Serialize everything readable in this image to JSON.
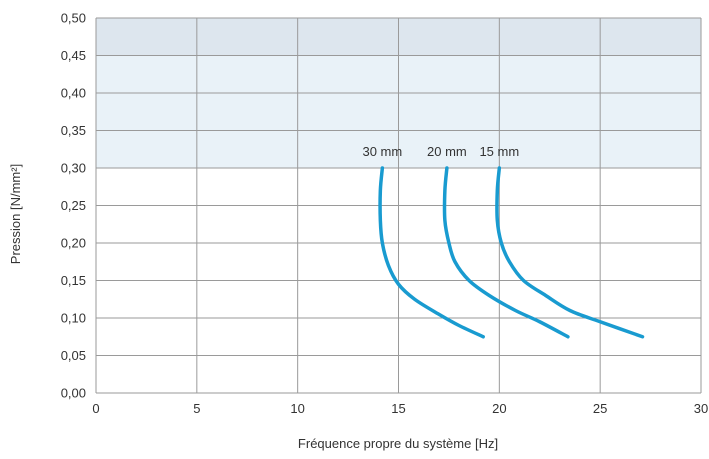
{
  "chart_data": {
    "type": "line",
    "xlabel": "Fréquence propre du système [Hz]",
    "ylabel": "Pression [N/mm²]",
    "xlim": [
      0,
      30
    ],
    "ylim": [
      0,
      0.5
    ],
    "x_ticks": [
      0,
      5,
      10,
      15,
      20,
      25,
      30
    ],
    "x_tick_labels": [
      "0",
      "5",
      "10",
      "15",
      "20",
      "25",
      "30"
    ],
    "y_ticks": [
      0,
      0.05,
      0.1,
      0.15,
      0.2,
      0.25,
      0.3,
      0.35,
      0.4,
      0.45,
      0.5
    ],
    "y_tick_labels": [
      "0,00",
      "0,05",
      "0,10",
      "0,15",
      "0,20",
      "0,25",
      "0,30",
      "0,35",
      "0,40",
      "0,45",
      "0,50"
    ],
    "grid": true,
    "bands": [
      {
        "from": 0.45,
        "to": 0.5,
        "color": "#dde6ee"
      },
      {
        "from": 0.3,
        "to": 0.45,
        "color": "#e9f2f8"
      }
    ],
    "line_color": "#199bd0",
    "series": [
      {
        "name": "30 mm",
        "points": [
          [
            14.2,
            0.3
          ],
          [
            14.1,
            0.27
          ],
          [
            14.1,
            0.23
          ],
          [
            14.2,
            0.2
          ],
          [
            14.5,
            0.17
          ],
          [
            15.0,
            0.145
          ],
          [
            15.8,
            0.125
          ],
          [
            17.0,
            0.105
          ],
          [
            18.0,
            0.09
          ],
          [
            19.2,
            0.075
          ]
        ]
      },
      {
        "name": "20 mm",
        "points": [
          [
            17.4,
            0.3
          ],
          [
            17.3,
            0.27
          ],
          [
            17.3,
            0.23
          ],
          [
            17.5,
            0.2
          ],
          [
            17.8,
            0.175
          ],
          [
            18.5,
            0.15
          ],
          [
            19.5,
            0.13
          ],
          [
            20.8,
            0.11
          ],
          [
            22.0,
            0.095
          ],
          [
            23.4,
            0.075
          ]
        ]
      },
      {
        "name": "15 mm",
        "points": [
          [
            20.0,
            0.3
          ],
          [
            19.9,
            0.27
          ],
          [
            19.9,
            0.23
          ],
          [
            20.1,
            0.2
          ],
          [
            20.5,
            0.175
          ],
          [
            21.2,
            0.15
          ],
          [
            22.3,
            0.13
          ],
          [
            23.5,
            0.11
          ],
          [
            25.0,
            0.095
          ],
          [
            27.1,
            0.075
          ]
        ]
      }
    ]
  }
}
